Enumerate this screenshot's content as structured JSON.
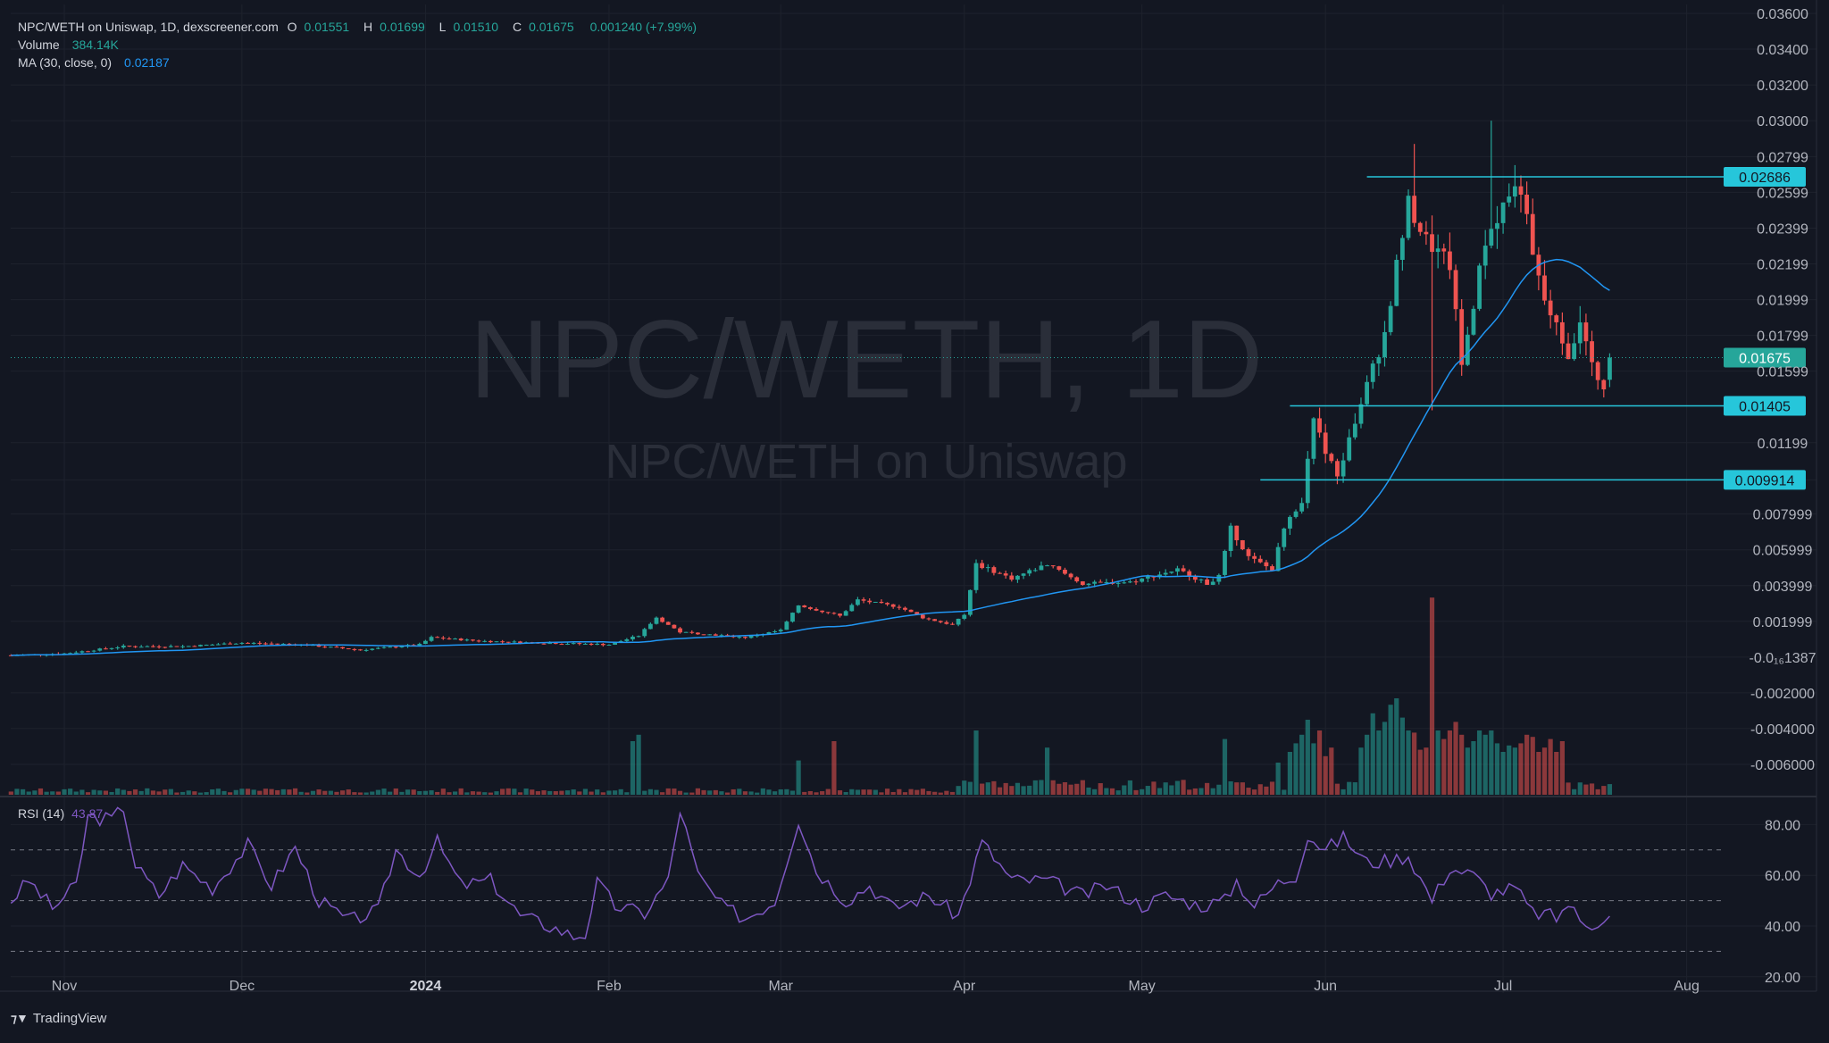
{
  "header": {
    "symbol": "NPC/WETH on Uniswap, 1D, dexscreener.com",
    "o_label": "O",
    "o_value": "0.01551",
    "h_label": "H",
    "h_value": "0.01699",
    "l_label": "L",
    "l_value": "0.01510",
    "c_label": "C",
    "c_value": "0.01675",
    "change": "0.001240 (+7.99%)",
    "volume_label": "Volume",
    "volume_value": "384.14K",
    "ma_label": "MA (30, close, 0)",
    "ma_value": "0.02187"
  },
  "watermark": {
    "line1": "NPC/WETH, 1D",
    "line2": "NPC/WETH on Uniswap"
  },
  "rsi_panel": {
    "label": "RSI (14)",
    "value": "43.87"
  },
  "branding": {
    "name": "TradingView"
  },
  "colors": {
    "up": "#26a69a",
    "down": "#ef5350",
    "ma": "#2196f3",
    "rsi": "#7e57c2",
    "level": "#26c6da",
    "bg": "#131722"
  },
  "chart_data": [
    {
      "type": "candlestick",
      "title": "NPC/WETH on Uniswap, 1D",
      "ylim": [
        -0.007,
        0.036
      ],
      "y_ticks": [
        "0.03600",
        "0.03400",
        "0.03200",
        "0.03000",
        "0.02799",
        "0.02599",
        "0.02399",
        "0.02199",
        "0.01999",
        "0.01799",
        "0.01599",
        "0.01199",
        "0.009914",
        "0.007999",
        "0.005999",
        "0.003999",
        "0.001999",
        "-0.0₁₆1387",
        "-0.002000",
        "-0.004000",
        "-0.006000"
      ],
      "y_tick_values": [
        0.036,
        0.034,
        0.032,
        0.03,
        0.02799,
        0.02599,
        0.02399,
        0.02199,
        0.01999,
        0.01799,
        0.01599,
        0.01199,
        0.009914,
        0.007999,
        0.005999,
        0.003999,
        0.001999,
        0.0,
        -0.002,
        -0.004,
        -0.006
      ],
      "x_ticks": [
        {
          "label": "Nov",
          "day": 0
        },
        {
          "label": "Dec",
          "day": 30
        },
        {
          "label": "2024",
          "day": 61
        },
        {
          "label": "Feb",
          "day": 92
        },
        {
          "label": "Mar",
          "day": 121
        },
        {
          "label": "Apr",
          "day": 152
        },
        {
          "label": "May",
          "day": 182
        },
        {
          "label": "Jun",
          "day": 213
        },
        {
          "label": "Jul",
          "day": 243
        },
        {
          "label": "Aug",
          "day": 274
        }
      ],
      "levels": [
        {
          "value": 0.02686,
          "label": "0.02686",
          "from_day": 220
        },
        {
          "value": 0.01405,
          "label": "0.01405",
          "from_day": 207
        },
        {
          "value": 0.009914,
          "label": "0.009914",
          "from_day": 202
        }
      ],
      "last_price": {
        "value": 0.01675,
        "label": "0.01675"
      },
      "anchors": [
        [
          -9,
          0.0001
        ],
        [
          0,
          0.0002
        ],
        [
          10,
          0.0006
        ],
        [
          20,
          0.0006
        ],
        [
          30,
          0.0008
        ],
        [
          40,
          0.0007
        ],
        [
          50,
          0.0004
        ],
        [
          60,
          0.0007
        ],
        [
          62,
          0.0011
        ],
        [
          70,
          0.0009
        ],
        [
          80,
          0.0008
        ],
        [
          92,
          0.0007
        ],
        [
          97,
          0.0012
        ],
        [
          100,
          0.0022
        ],
        [
          104,
          0.0014
        ],
        [
          115,
          0.0011
        ],
        [
          121,
          0.0015
        ],
        [
          124,
          0.0029
        ],
        [
          131,
          0.0023
        ],
        [
          134,
          0.0032
        ],
        [
          141,
          0.0028
        ],
        [
          145,
          0.0022
        ],
        [
          150,
          0.0018
        ],
        [
          152,
          0.0024
        ],
        [
          154,
          0.0052
        ],
        [
          160,
          0.0044
        ],
        [
          166,
          0.0052
        ],
        [
          172,
          0.0041
        ],
        [
          180,
          0.0042
        ],
        [
          188,
          0.0049
        ],
        [
          193,
          0.0041
        ],
        [
          195,
          0.0045
        ],
        [
          197,
          0.0072
        ],
        [
          200,
          0.0056
        ],
        [
          204,
          0.0049
        ],
        [
          206,
          0.0072
        ],
        [
          209,
          0.0088
        ],
        [
          211,
          0.0131
        ],
        [
          215,
          0.0101
        ],
        [
          219,
          0.0142
        ],
        [
          223,
          0.0181
        ],
        [
          225,
          0.0219
        ],
        [
          227,
          0.0253
        ],
        [
          230,
          0.0233
        ],
        [
          234,
          0.0219
        ],
        [
          236,
          0.0163
        ],
        [
          240,
          0.0233
        ],
        [
          244,
          0.0259
        ],
        [
          246,
          0.0263
        ],
        [
          248,
          0.0223
        ],
        [
          250,
          0.0199
        ],
        [
          254,
          0.0169
        ],
        [
          256,
          0.0189
        ],
        [
          258,
          0.0162
        ],
        [
          260,
          0.0151
        ],
        [
          261,
          0.0168
        ]
      ],
      "ma_label": "MA (30, close, 0)",
      "ma_last": 0.02187,
      "volume_label": "Volume",
      "volume_last": "384.14K",
      "volume_spikes": [
        [
          96,
          0.25
        ],
        [
          97,
          0.28
        ],
        [
          124,
          0.16
        ],
        [
          130,
          0.25
        ],
        [
          154,
          0.3
        ],
        [
          166,
          0.22
        ],
        [
          196,
          0.26
        ],
        [
          205,
          0.15
        ],
        [
          207,
          0.2
        ],
        [
          208,
          0.24
        ],
        [
          209,
          0.28
        ],
        [
          210,
          0.35
        ],
        [
          211,
          0.24
        ],
        [
          212,
          0.3
        ],
        [
          213,
          0.18
        ],
        [
          214,
          0.22
        ],
        [
          219,
          0.22
        ],
        [
          220,
          0.28
        ],
        [
          221,
          0.38
        ],
        [
          222,
          0.3
        ],
        [
          223,
          0.34
        ],
        [
          224,
          0.42
        ],
        [
          225,
          0.45
        ],
        [
          226,
          0.36
        ],
        [
          227,
          0.3
        ],
        [
          228,
          0.29
        ],
        [
          229,
          0.21
        ],
        [
          230,
          0.22
        ],
        [
          231,
          0.92
        ],
        [
          232,
          0.3
        ],
        [
          233,
          0.26
        ],
        [
          234,
          0.3
        ],
        [
          235,
          0.34
        ],
        [
          236,
          0.28
        ],
        [
          237,
          0.22
        ],
        [
          238,
          0.25
        ],
        [
          239,
          0.3
        ],
        [
          240,
          0.28
        ],
        [
          241,
          0.3
        ],
        [
          242,
          0.24
        ],
        [
          243,
          0.2
        ],
        [
          244,
          0.23
        ],
        [
          245,
          0.22
        ],
        [
          246,
          0.24
        ],
        [
          247,
          0.28
        ],
        [
          248,
          0.27
        ],
        [
          249,
          0.2
        ],
        [
          250,
          0.22
        ],
        [
          251,
          0.26
        ],
        [
          252,
          0.2
        ],
        [
          253,
          0.25
        ]
      ]
    },
    {
      "type": "line",
      "title": "RSI (14)",
      "ylim": [
        15,
        90
      ],
      "y_ticks": [
        "80.00",
        "60.00",
        "40.00",
        "20.00"
      ],
      "y_tick_values": [
        80,
        60,
        40,
        20
      ],
      "bands": [
        30,
        50,
        70
      ],
      "last": 43.87,
      "anchors": [
        [
          -9,
          50
        ],
        [
          -6,
          58
        ],
        [
          -2,
          47
        ],
        [
          2,
          56
        ],
        [
          4,
          83
        ],
        [
          8,
          82
        ],
        [
          10,
          87
        ],
        [
          12,
          64
        ],
        [
          16,
          52
        ],
        [
          20,
          64
        ],
        [
          25,
          55
        ],
        [
          31,
          72
        ],
        [
          35,
          56
        ],
        [
          39,
          71
        ],
        [
          43,
          50
        ],
        [
          48,
          42
        ],
        [
          53,
          46
        ],
        [
          56,
          70
        ],
        [
          60,
          60
        ],
        [
          63,
          73
        ],
        [
          67,
          56
        ],
        [
          72,
          58
        ],
        [
          77,
          44
        ],
        [
          82,
          40
        ],
        [
          86,
          36
        ],
        [
          88,
          37
        ],
        [
          90,
          57
        ],
        [
          93,
          48
        ],
        [
          98,
          45
        ],
        [
          102,
          58
        ],
        [
          104,
          86
        ],
        [
          107,
          60
        ],
        [
          111,
          48
        ],
        [
          115,
          43
        ],
        [
          120,
          50
        ],
        [
          124,
          82
        ],
        [
          127,
          62
        ],
        [
          132,
          50
        ],
        [
          136,
          56
        ],
        [
          140,
          47
        ],
        [
          146,
          52
        ],
        [
          151,
          44
        ],
        [
          155,
          73
        ],
        [
          160,
          58
        ],
        [
          166,
          58
        ],
        [
          172,
          52
        ],
        [
          176,
          56
        ],
        [
          182,
          48
        ],
        [
          186,
          52
        ],
        [
          192,
          48
        ],
        [
          196,
          50
        ],
        [
          198,
          58
        ],
        [
          201,
          48
        ],
        [
          205,
          57
        ],
        [
          208,
          60
        ],
        [
          210,
          76
        ],
        [
          213,
          70
        ],
        [
          216,
          75
        ],
        [
          220,
          65
        ],
        [
          224,
          66
        ],
        [
          227,
          68
        ],
        [
          231,
          50
        ],
        [
          234,
          63
        ],
        [
          238,
          60
        ],
        [
          241,
          53
        ],
        [
          245,
          55
        ],
        [
          248,
          45
        ],
        [
          250,
          45
        ],
        [
          252,
          43
        ],
        [
          254,
          49
        ],
        [
          256,
          42
        ],
        [
          258,
          41
        ],
        [
          261,
          44
        ]
      ]
    }
  ]
}
